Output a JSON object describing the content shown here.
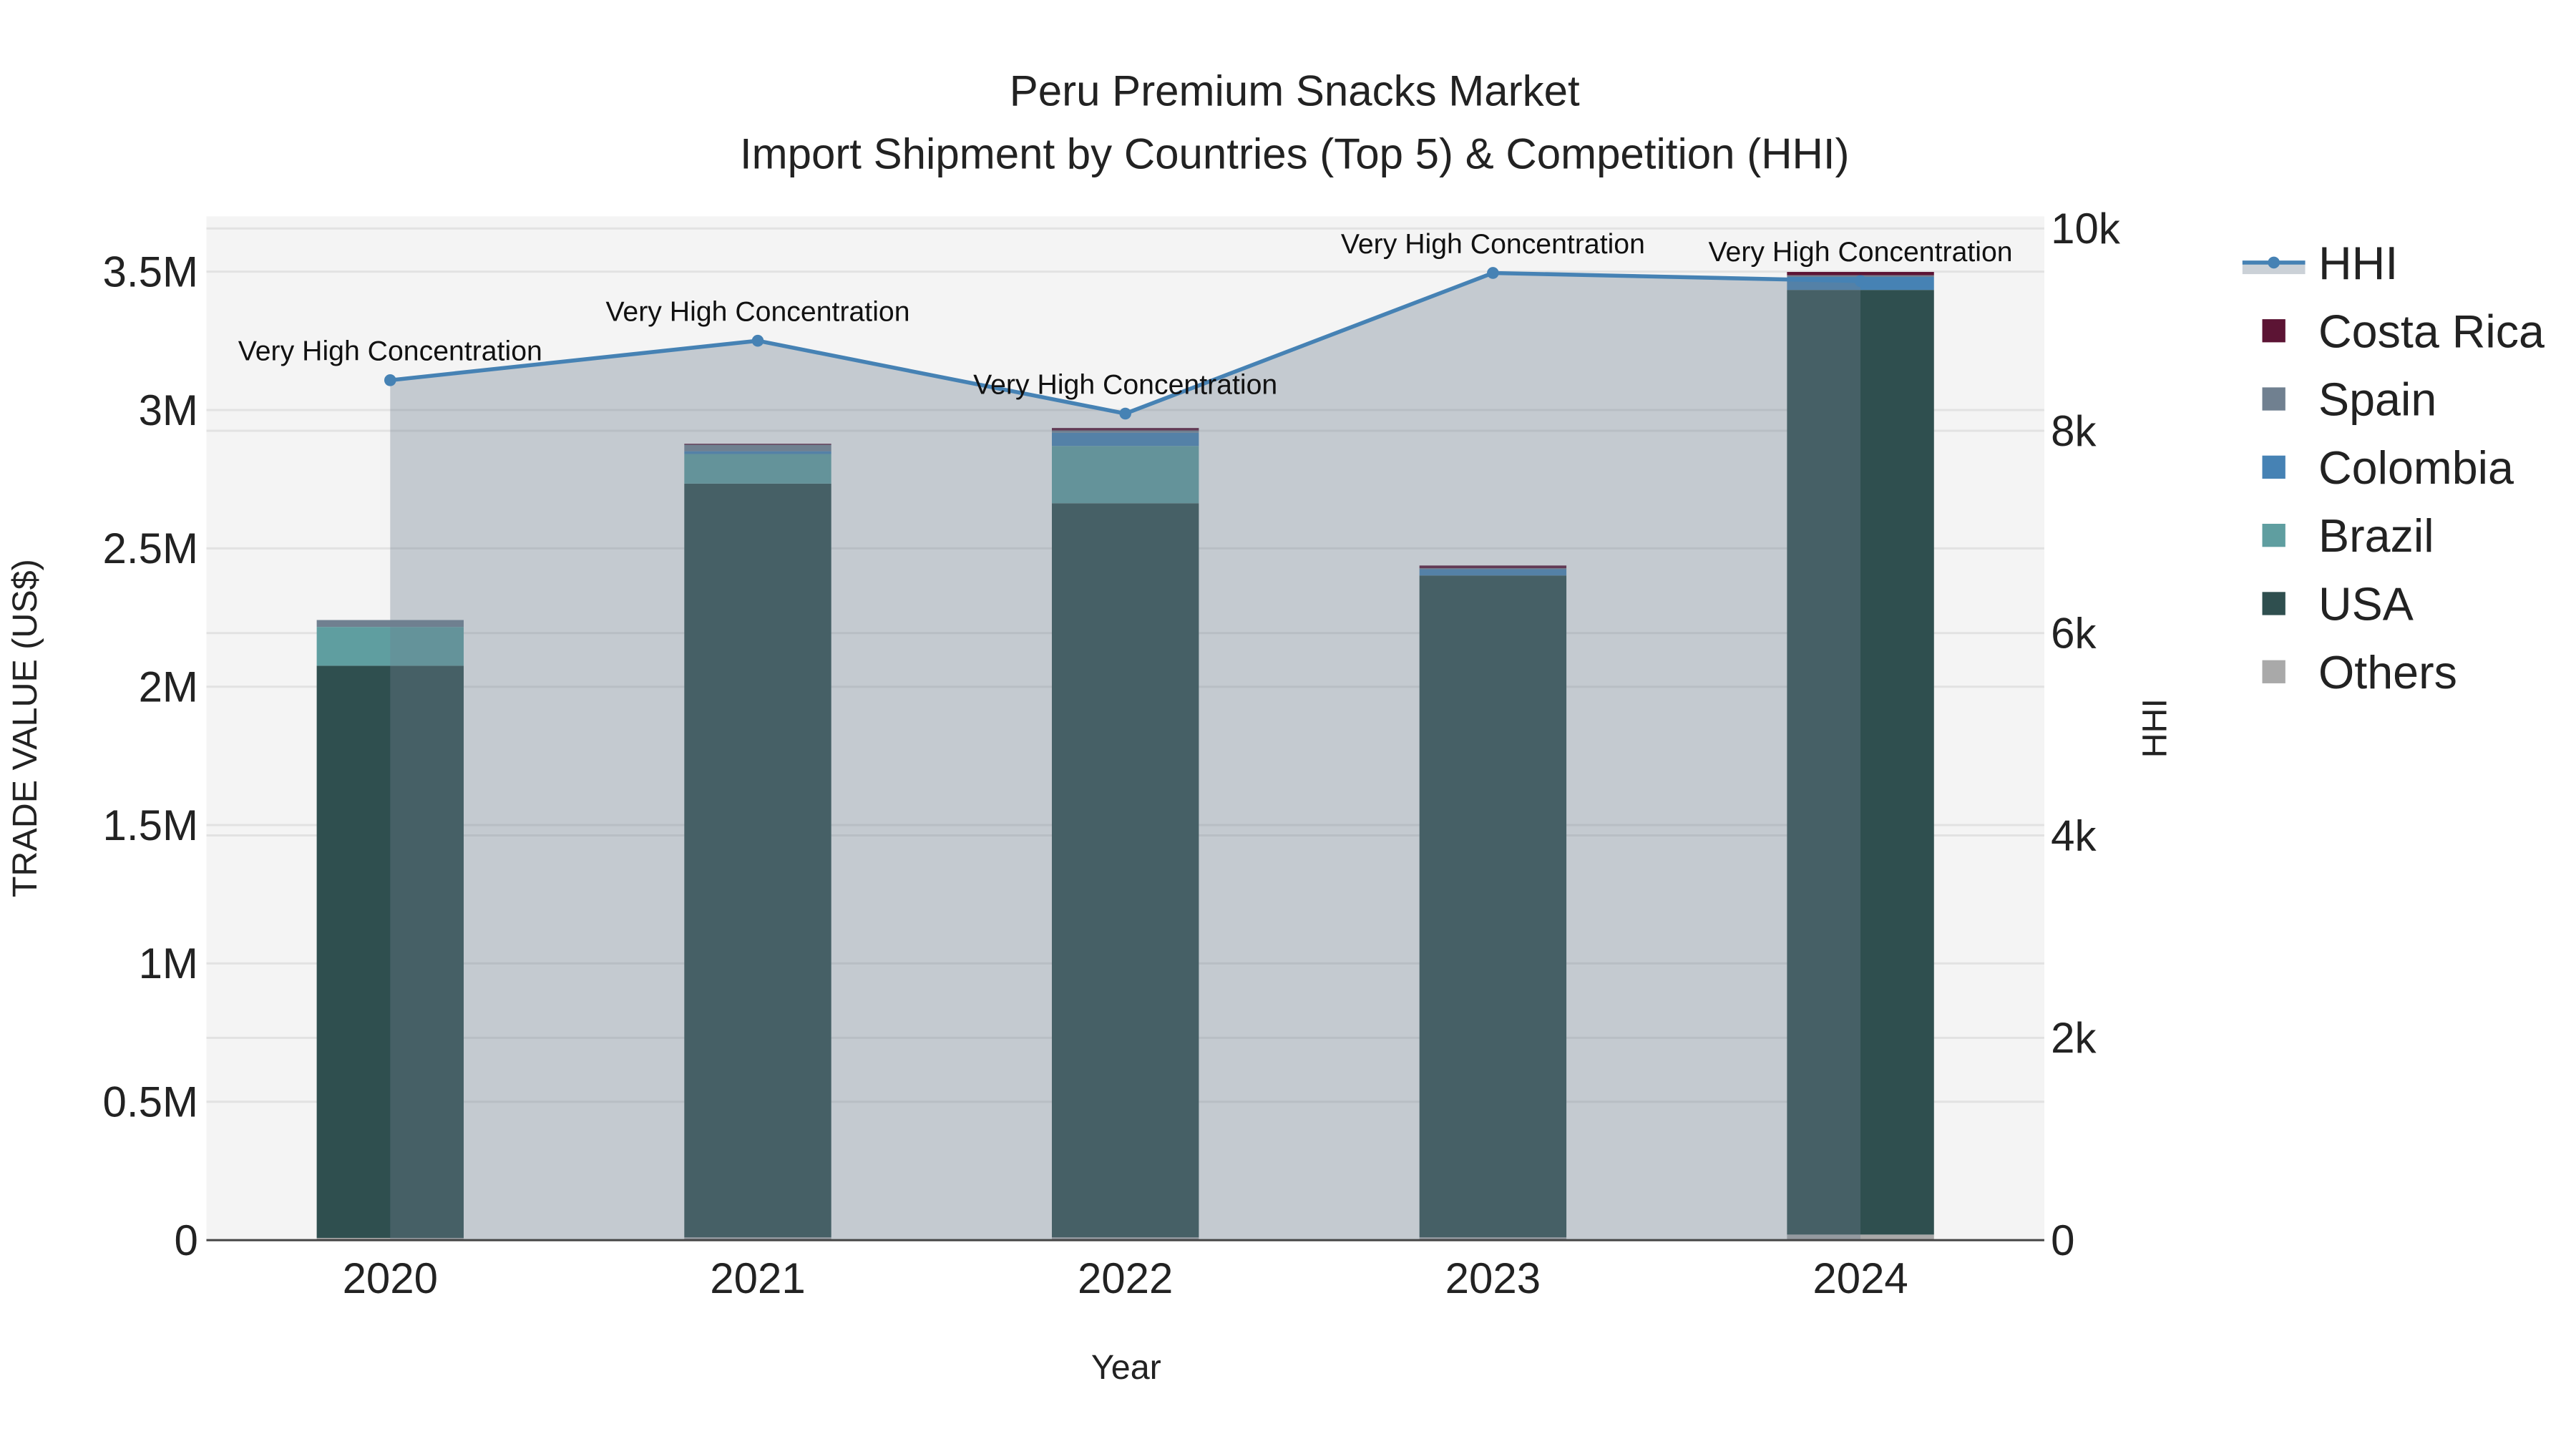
{
  "chart_data": {
    "type": "bar",
    "barmode": "stack",
    "title": "Peru Premium Snacks Market",
    "subtitle": "Import Shipment by Countries (Top 5) & Competition (HHI)",
    "xlabel": "Year",
    "ylabel": "TRADE VALUE (US$)",
    "y2label": "HHI",
    "categories": [
      "2020",
      "2021",
      "2022",
      "2023",
      "2024"
    ],
    "ylim": [
      0,
      3700000
    ],
    "y2lim": [
      0,
      10120
    ],
    "yticks": [
      {
        "v": 0,
        "label": "0"
      },
      {
        "v": 500000,
        "label": "0.5M"
      },
      {
        "v": 1000000,
        "label": "1M"
      },
      {
        "v": 1500000,
        "label": "1.5M"
      },
      {
        "v": 2000000,
        "label": "2M"
      },
      {
        "v": 2500000,
        "label": "2.5M"
      },
      {
        "v": 3000000,
        "label": "3M"
      },
      {
        "v": 3500000,
        "label": "3.5M"
      }
    ],
    "y2ticks": [
      {
        "v": 0,
        "label": "0"
      },
      {
        "v": 2000,
        "label": "2k"
      },
      {
        "v": 4000,
        "label": "4k"
      },
      {
        "v": 6000,
        "label": "6k"
      },
      {
        "v": 8000,
        "label": "8k"
      },
      {
        "v": 10000,
        "label": "10k"
      }
    ],
    "grid": true,
    "legend_position": "right",
    "series": [
      {
        "name": "Others",
        "color": "#A9A9A9",
        "values": [
          8000,
          10000,
          10000,
          10000,
          20000
        ]
      },
      {
        "name": "USA",
        "color": "#2F4F4F",
        "values": [
          2068000,
          2724000,
          2653000,
          2392000,
          3414000
        ]
      },
      {
        "name": "Brazil",
        "color": "#5F9EA0",
        "values": [
          140000,
          107000,
          207000,
          0,
          0
        ]
      },
      {
        "name": "Colombia",
        "color": "#4682B4",
        "values": [
          0,
          10000,
          48000,
          24000,
          47000
        ]
      },
      {
        "name": "Spain",
        "color": "#708090",
        "values": [
          25000,
          24000,
          8000,
          2000,
          6000
        ]
      },
      {
        "name": "Costa Rica",
        "color": "#5C1434",
        "values": [
          0,
          3000,
          9000,
          10000,
          12000
        ]
      }
    ],
    "legend_order": [
      "HHI",
      "Costa Rica",
      "Spain",
      "Colombia",
      "Brazil",
      "USA",
      "Others"
    ],
    "hhi": {
      "name": "HHI",
      "color": "#4682B4",
      "values": [
        8500,
        8890,
        8170,
        9560,
        9480
      ],
      "annotations": [
        "Very High Concentration",
        "Very High Concentration",
        "Very High Concentration",
        "Very High Concentration",
        "Very High Concentration"
      ]
    }
  }
}
